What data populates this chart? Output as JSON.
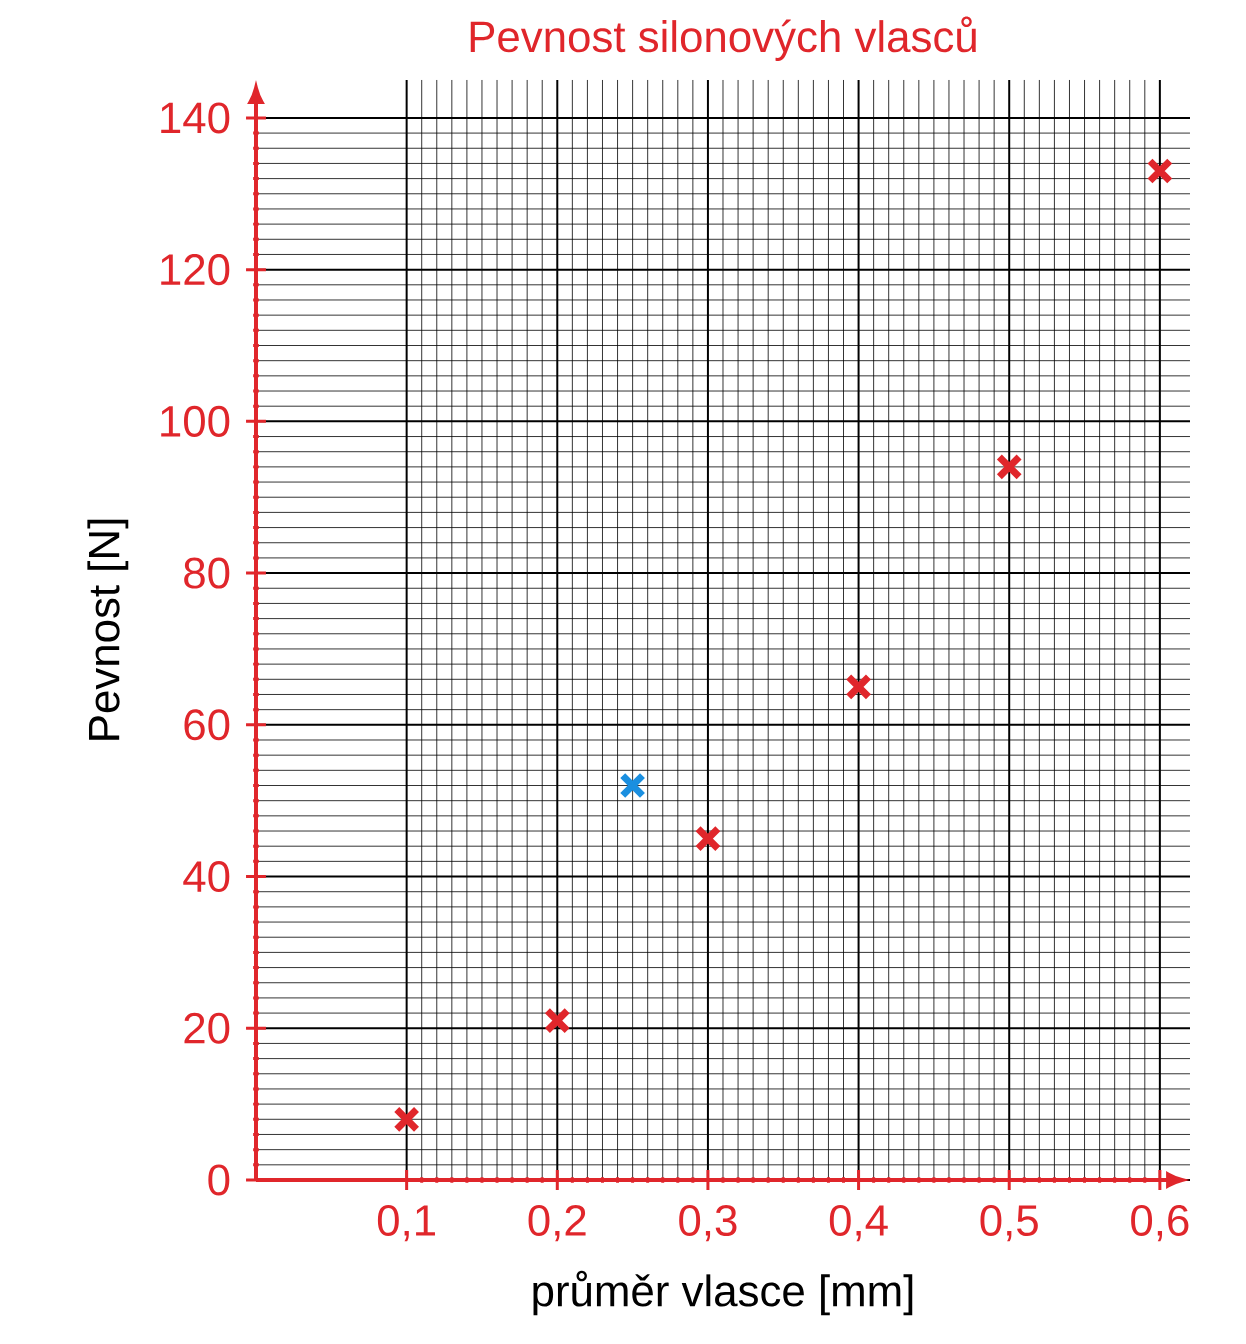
{
  "chart_data": {
    "type": "scatter",
    "title": "Pevnost silonových vlasců",
    "xlabel": "průměr vlasce [mm]",
    "ylabel": "Pevnost [N]",
    "xlim": [
      0,
      0.62
    ],
    "ylim": [
      0,
      145
    ],
    "xticks": [
      {
        "value": 0.1,
        "label": "0,1"
      },
      {
        "value": 0.2,
        "label": "0,2"
      },
      {
        "value": 0.3,
        "label": "0,3"
      },
      {
        "value": 0.4,
        "label": "0,4"
      },
      {
        "value": 0.5,
        "label": "0,5"
      },
      {
        "value": 0.6,
        "label": "0,6"
      }
    ],
    "yticks": [
      0,
      20,
      40,
      60,
      80,
      100,
      120,
      140
    ],
    "grid": true,
    "marker": "cross",
    "series": [
      {
        "color": "#e0262b",
        "x": [
          0.1,
          0.2,
          0.3,
          0.4,
          0.5,
          0.6
        ],
        "values": [
          8,
          21,
          45,
          65,
          94,
          133
        ]
      },
      {
        "color": "#1a8fe0",
        "x": [
          0.25
        ],
        "values": [
          52
        ]
      }
    ]
  }
}
